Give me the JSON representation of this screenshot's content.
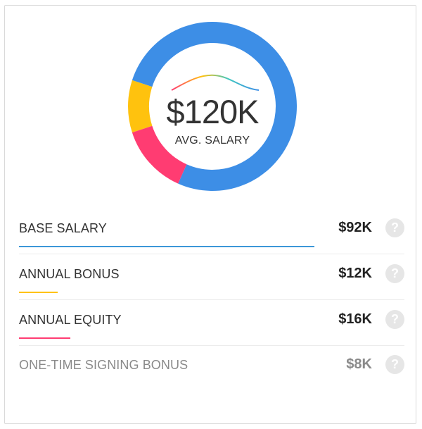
{
  "summary": {
    "amount": "$120K",
    "label": "AVG. SALARY"
  },
  "colors": {
    "base": "#3d8ee6",
    "bonus": "#ffc20e",
    "equity": "#ff3c72",
    "signing": "#cccccc"
  },
  "chart_data": {
    "type": "pie",
    "categories": [
      "Base Salary",
      "Annual Bonus",
      "Annual Equity"
    ],
    "values": [
      92,
      12,
      16
    ]
  },
  "items": [
    {
      "label": "BASE SALARY",
      "value": "$92K",
      "help": "?",
      "share": 0.767
    },
    {
      "label": "ANNUAL BONUS",
      "value": "$12K",
      "help": "?",
      "share": 0.1
    },
    {
      "label": "ANNUAL EQUITY",
      "value": "$16K",
      "help": "?",
      "share": 0.133
    },
    {
      "label": "ONE-TIME SIGNING BONUS",
      "value": "$8K",
      "help": "?"
    }
  ]
}
